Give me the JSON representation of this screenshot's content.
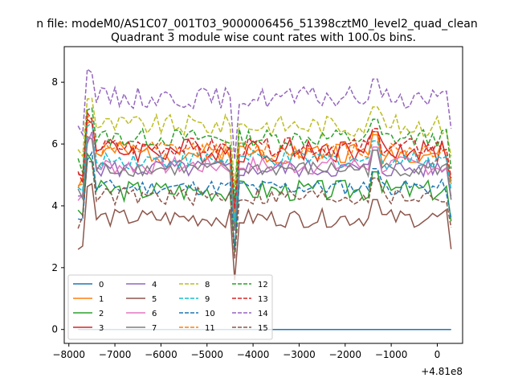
{
  "chart_data": {
    "type": "line",
    "suptitle": "n file: modeM0/AS1C07_001T03_9000006456_51398cztM0_level2_quad_clean",
    "title": "Quadrant 3 module wise count rates with 100.0s bins.",
    "xlabel": "",
    "ylabel": "",
    "x_offset_label": "+4.81e8",
    "xlim": [
      -8100,
      550
    ],
    "ylim": [
      -0.45,
      9.15
    ],
    "xticks": [
      -8000,
      -7000,
      -6000,
      -5000,
      -4000,
      -3000,
      -2000,
      -1000,
      0
    ],
    "xtick_labels": [
      "−8000",
      "−7000",
      "−6000",
      "−5000",
      "−4000",
      "−3000",
      "−2000",
      "−1000",
      "0"
    ],
    "yticks": [
      0,
      2,
      4,
      6,
      8
    ],
    "ytick_labels": [
      "0",
      "2",
      "4",
      "6",
      "8"
    ],
    "grid": false,
    "legend_position": "lower-left",
    "legend_columns": 4,
    "series": [
      {
        "name": "0",
        "color": "#1f77b4",
        "dash": "solid",
        "base": 0.0,
        "amp": 0.0,
        "seed": 1
      },
      {
        "name": "1",
        "color": "#ff7f0e",
        "dash": "solid",
        "base": 5.7,
        "amp": 0.35,
        "seed": 2
      },
      {
        "name": "2",
        "color": "#2ca02c",
        "dash": "solid",
        "base": 4.5,
        "amp": 0.35,
        "seed": 3
      },
      {
        "name": "3",
        "color": "#d62728",
        "dash": "solid",
        "base": 5.8,
        "amp": 0.4,
        "seed": 4
      },
      {
        "name": "4",
        "color": "#9467bd",
        "dash": "solid",
        "base": 5.2,
        "amp": 0.3,
        "seed": 5
      },
      {
        "name": "5",
        "color": "#8c564b",
        "dash": "solid",
        "base": 3.6,
        "amp": 0.3,
        "seed": 6
      },
      {
        "name": "6",
        "color": "#e377c2",
        "dash": "solid",
        "base": 5.3,
        "amp": 0.3,
        "seed": 7
      },
      {
        "name": "7",
        "color": "#7f7f7f",
        "dash": "solid",
        "base": 5.2,
        "amp": 0.25,
        "seed": 8
      },
      {
        "name": "8",
        "color": "#bcbd22",
        "dash": "dashed",
        "base": 6.6,
        "amp": 0.35,
        "seed": 9
      },
      {
        "name": "9",
        "color": "#17becf",
        "dash": "dashed",
        "base": 5.5,
        "amp": 0.3,
        "seed": 10
      },
      {
        "name": "10",
        "color": "#1f77b4",
        "dash": "dashed",
        "base": 4.6,
        "amp": 0.25,
        "seed": 11
      },
      {
        "name": "11",
        "color": "#ff7f0e",
        "dash": "dashed",
        "base": 5.8,
        "amp": 0.3,
        "seed": 12
      },
      {
        "name": "12",
        "color": "#2ca02c",
        "dash": "dashed",
        "base": 6.2,
        "amp": 0.3,
        "seed": 13
      },
      {
        "name": "13",
        "color": "#d62728",
        "dash": "dashed",
        "base": 5.9,
        "amp": 0.3,
        "seed": 14
      },
      {
        "name": "14",
        "color": "#9467bd",
        "dash": "dashed",
        "base": 7.5,
        "amp": 0.35,
        "seed": 15
      },
      {
        "name": "15",
        "color": "#8c564b",
        "dash": "dashed",
        "base": 4.3,
        "amp": 0.3,
        "seed": 16
      }
    ]
  }
}
